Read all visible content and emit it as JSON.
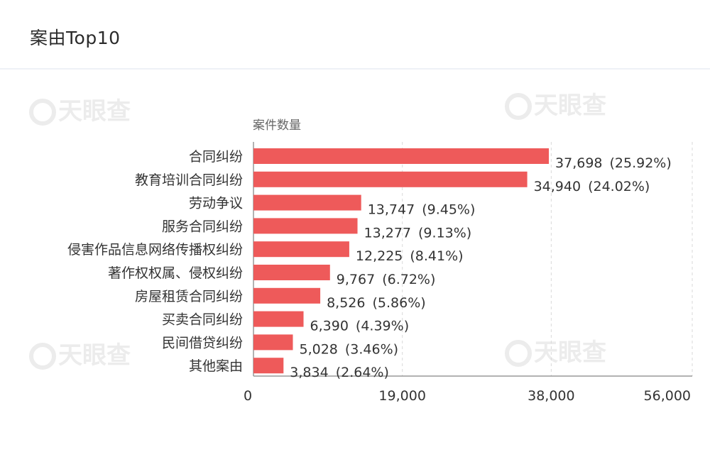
{
  "header": {
    "title": "案由Top10"
  },
  "watermark": {
    "text": "天眼查"
  },
  "colors": {
    "bar": "#ee5a5a",
    "grid": "#d9d9d9",
    "axis": "#999999"
  },
  "chart_data": {
    "type": "bar",
    "orientation": "horizontal",
    "title": "",
    "xlabel": "",
    "ylabel": "案件数量",
    "xlim": [
      0,
      56000
    ],
    "ticks": [
      "0",
      "19,000",
      "38,000",
      "56,000"
    ],
    "categories": [
      "合同纠纷",
      "教育培训合同纠纷",
      "劳动争议",
      "服务合同纠纷",
      "侵害作品信息网络传播权纠纷",
      "著作权权属、侵权纠纷",
      "房屋租赁合同纠纷",
      "买卖合同纠纷",
      "民间借贷纠纷",
      "其他案由"
    ],
    "values": [
      37698,
      34940,
      13747,
      13277,
      12225,
      9767,
      8526,
      6390,
      5028,
      3834
    ],
    "value_labels": [
      "37,698",
      "34,940",
      "13,747",
      "13,277",
      "12,225",
      "9,767",
      "8,526",
      "6,390",
      "5,028",
      "3,834"
    ],
    "percent_labels": [
      "(25.92%)",
      "(24.02%)",
      "(9.45%)",
      "(9.13%)",
      "(8.41%)",
      "(6.72%)",
      "(5.86%)",
      "(4.39%)",
      "(3.46%)",
      "(2.64%)"
    ]
  }
}
